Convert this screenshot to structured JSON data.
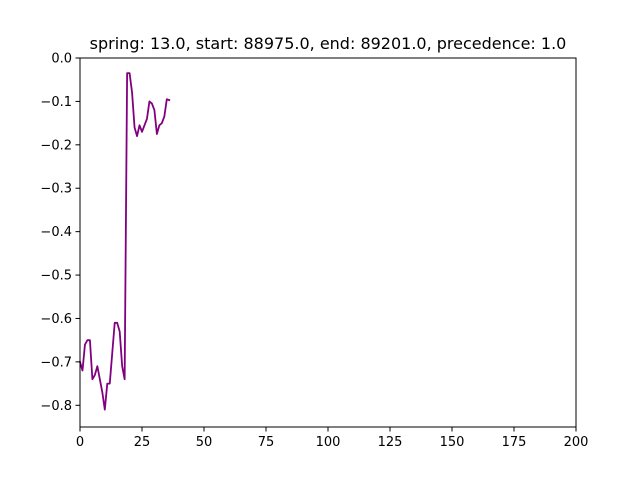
{
  "chart_data": {
    "type": "line",
    "title": "spring: 13.0, start: 88975.0, end: 89201.0, precedence: 1.0",
    "xlabel": "",
    "ylabel": "",
    "xlim": [
      0,
      200
    ],
    "ylim": [
      -0.85,
      0.0
    ],
    "x_ticks": [
      0,
      25,
      50,
      75,
      100,
      125,
      150,
      175,
      200
    ],
    "x_tick_labels": [
      "0",
      "25",
      "50",
      "75",
      "100",
      "125",
      "150",
      "175",
      "200"
    ],
    "y_ticks": [
      0.0,
      -0.1,
      -0.2,
      -0.3,
      -0.4,
      -0.5,
      -0.6,
      -0.7,
      -0.8
    ],
    "y_tick_labels": [
      "0.0",
      "−0.1",
      "−0.2",
      "−0.3",
      "−0.4",
      "−0.5",
      "−0.6",
      "−0.7",
      "−0.8"
    ],
    "grid": false,
    "series": [
      {
        "color": "#800080",
        "x": [
          0,
          1,
          2,
          3,
          4,
          5,
          6,
          7,
          8,
          9,
          10,
          11,
          12,
          13,
          14,
          15,
          16,
          17,
          18,
          19,
          20,
          21,
          22,
          23,
          24,
          25,
          26,
          27,
          28,
          29,
          30,
          31,
          32,
          33,
          34,
          35,
          36
        ],
        "y": [
          -0.7,
          -0.72,
          -0.66,
          -0.65,
          -0.65,
          -0.74,
          -0.73,
          -0.71,
          -0.74,
          -0.77,
          -0.81,
          -0.75,
          -0.75,
          -0.68,
          -0.61,
          -0.61,
          -0.63,
          -0.71,
          -0.74,
          -0.035,
          -0.035,
          -0.08,
          -0.16,
          -0.18,
          -0.155,
          -0.17,
          -0.155,
          -0.14,
          -0.1,
          -0.105,
          -0.12,
          -0.175,
          -0.155,
          -0.15,
          -0.135,
          -0.095,
          -0.097
        ]
      }
    ]
  }
}
